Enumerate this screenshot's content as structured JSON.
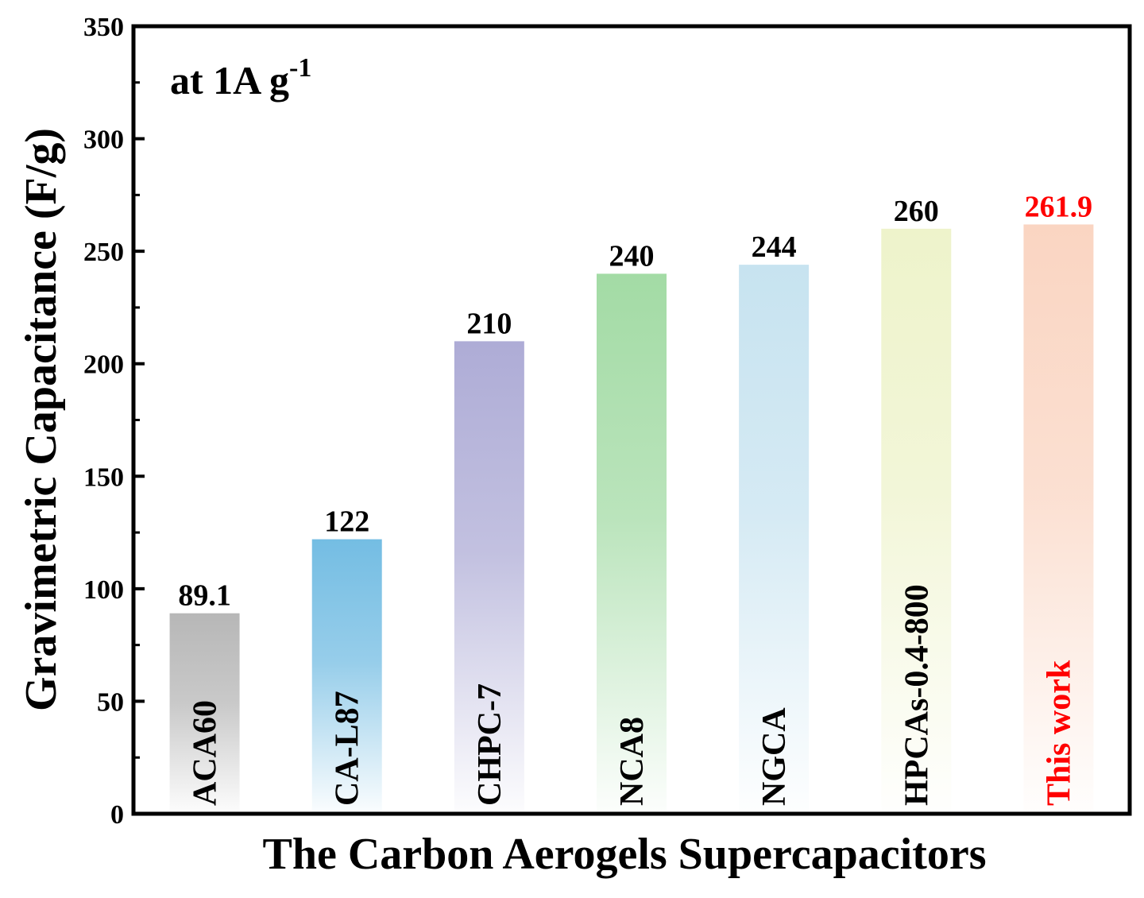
{
  "chart_data": {
    "type": "bar",
    "categories": [
      "ACA60",
      "CA-L87",
      "CHPC-7",
      "NCA8",
      "NGCA",
      "HPCAs-0.4-800",
      "This work"
    ],
    "values": [
      89.1,
      122,
      210,
      240,
      244,
      260,
      261.9
    ],
    "value_labels": [
      "89.1",
      "122",
      "210",
      "240",
      "244",
      "260",
      "261.9"
    ],
    "bar_colors": [
      "#b7b7b7",
      "#74bde3",
      "#aeacd6",
      "#a3dba5",
      "#c7e3f0",
      "#eef3cb",
      "#fad5c2"
    ],
    "highlight_color": "#ff0000",
    "highlight_index": 6,
    "annotation": {
      "main": "at 1A g",
      "sup": "-1"
    },
    "xlabel": "The Carbon Aerogels Supercapacitors",
    "ylabel": "Gravimetric Capacitance (F/g)",
    "ylim": [
      0,
      350
    ],
    "yticks": [
      0,
      50,
      100,
      150,
      200,
      250,
      300,
      350
    ],
    "grid": false,
    "legend": "none"
  }
}
